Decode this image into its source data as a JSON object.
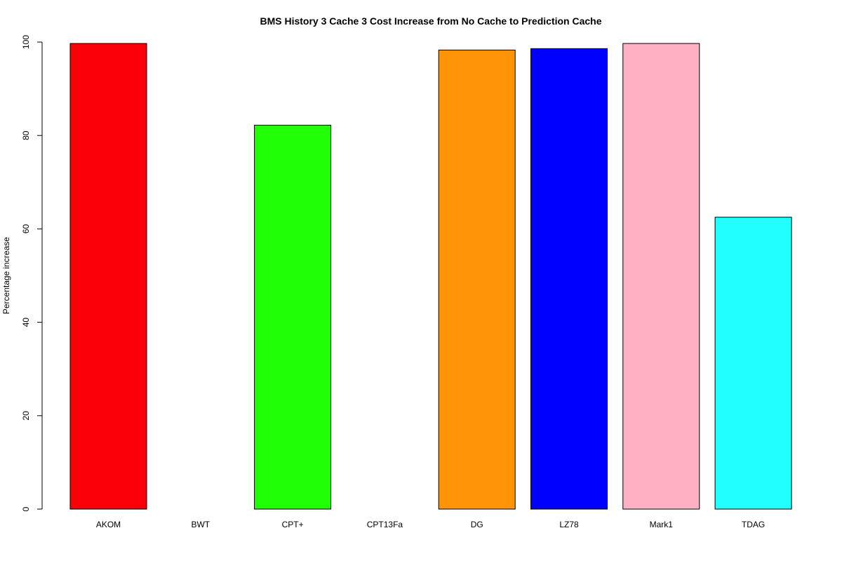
{
  "chart_data": {
    "type": "bar",
    "title": "BMS  History  3  Cache  3  Cost Increase from No Cache to Prediction Cache",
    "xlabel": "",
    "ylabel": "Percentage increase",
    "ylim": [
      0,
      100
    ],
    "yticks": [
      0,
      20,
      40,
      60,
      80,
      100
    ],
    "grid": false,
    "legend": "none",
    "categories": [
      "AKOM",
      "BWT",
      "CPT+",
      "CPT13Fa",
      "DG",
      "LZ78",
      "Mark1",
      "TDAG"
    ],
    "values": [
      99.7,
      0,
      82.2,
      0,
      98.3,
      98.6,
      99.7,
      62.5
    ],
    "colors": [
      "#FB0007",
      "#FFFFFF",
      "#21FF06",
      "#FFFFFF",
      "#FF9408",
      "#0000FF",
      "#FFB1C3",
      "#21FFFF"
    ]
  }
}
